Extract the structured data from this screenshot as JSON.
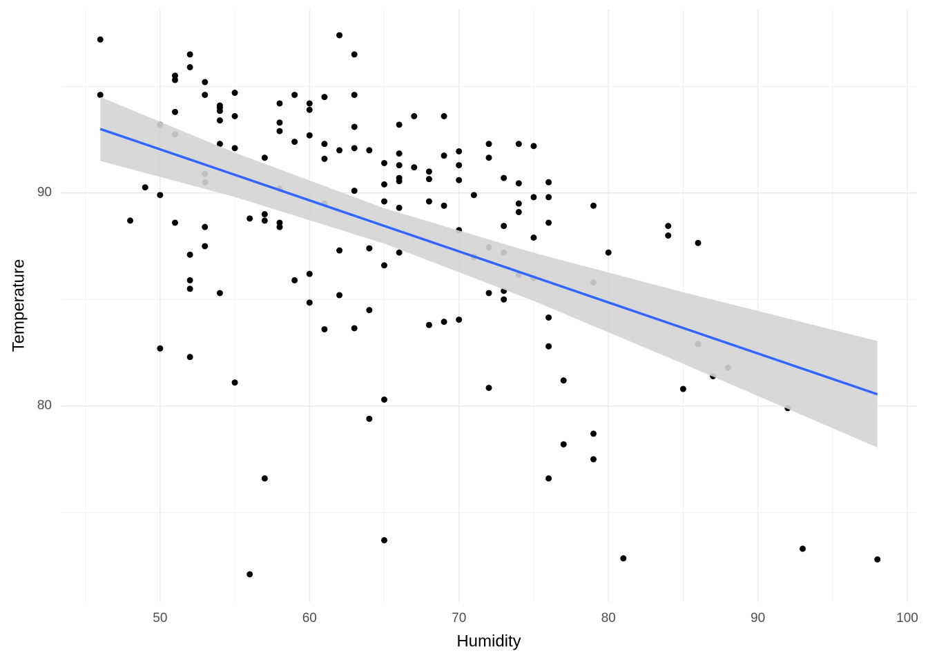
{
  "chart_data": {
    "type": "scatter",
    "x_label": "Humidity",
    "y_label": "Temperature",
    "xlim": [
      43.4,
      100.6
    ],
    "ylim": [
      70.8,
      98.6
    ],
    "xticks": [
      50,
      60,
      70,
      80,
      90,
      100
    ],
    "yticks": [
      80,
      90
    ],
    "x_minor_ticks": [
      45,
      55,
      65,
      75,
      85,
      95
    ],
    "y_minor_ticks": [
      75,
      85,
      95
    ],
    "grid": true,
    "point_color": "#000000",
    "x": [
      46,
      46,
      50,
      51,
      49,
      50,
      48,
      50,
      51,
      51,
      51,
      51,
      52,
      52,
      52,
      52,
      52,
      52,
      53,
      53,
      53,
      53,
      53,
      53,
      54,
      54,
      54,
      54,
      54,
      54,
      55,
      55,
      55,
      55,
      56,
      56,
      57,
      57,
      57,
      57,
      58,
      58,
      58,
      58,
      58,
      58,
      59,
      59,
      59,
      60,
      60,
      60,
      60,
      60,
      61,
      61,
      61,
      61,
      61,
      62,
      62,
      62,
      62,
      63,
      63,
      63,
      63,
      63,
      63,
      64,
      64,
      64,
      64,
      65,
      65,
      65,
      65,
      65,
      65,
      66,
      66,
      66,
      66,
      66,
      66,
      66,
      67,
      67,
      68,
      68,
      68,
      68,
      69,
      69,
      69,
      69,
      70,
      70,
      70,
      70,
      70,
      71,
      71,
      72,
      72,
      72,
      72,
      72,
      73,
      73,
      73,
      73,
      73,
      74,
      74,
      74,
      74,
      74,
      75,
      75,
      75,
      75,
      76,
      76,
      76,
      76,
      76,
      76,
      77,
      77,
      79,
      79,
      79,
      79,
      80,
      81,
      84,
      84,
      85,
      86,
      86,
      87,
      88,
      92,
      93,
      98
    ],
    "y": [
      97.2,
      94.6,
      93.2,
      92.75,
      90.26,
      89.9,
      88.7,
      82.7,
      95.5,
      95.3,
      93.8,
      88.6,
      96.5,
      95.9,
      87.1,
      85.9,
      85.5,
      82.3,
      95.2,
      94.6,
      90.9,
      90.5,
      88.4,
      87.5,
      94.1,
      94.0,
      93.85,
      93.4,
      92.3,
      85.3,
      94.7,
      93.6,
      92.1,
      81.1,
      88.8,
      72.1,
      91.65,
      89.0,
      88.7,
      76.6,
      94.2,
      93.3,
      92.9,
      90.2,
      88.6,
      88.4,
      94.6,
      92.4,
      85.9,
      94.2,
      93.9,
      92.7,
      86.2,
      84.85,
      94.5,
      92.3,
      91.6,
      89.5,
      83.6,
      97.4,
      92.0,
      87.3,
      85.2,
      96.5,
      94.6,
      93.1,
      92.1,
      90.1,
      83.65,
      92.0,
      87.4,
      84.5,
      79.4,
      91.4,
      90.4,
      89.6,
      86.6,
      80.3,
      73.7,
      93.2,
      91.85,
      91.3,
      90.7,
      90.55,
      89.3,
      87.2,
      93.6,
      91.2,
      91.0,
      90.65,
      89.6,
      83.8,
      93.6,
      91.75,
      89.4,
      83.95,
      91.95,
      91.3,
      90.6,
      88.25,
      84.05,
      89.9,
      87.0,
      92.3,
      91.65,
      87.45,
      85.3,
      80.85,
      90.7,
      88.45,
      87.2,
      85.4,
      85.0,
      92.3,
      90.45,
      89.5,
      89.1,
      86.15,
      92.2,
      89.8,
      87.9,
      86.0,
      90.5,
      89.8,
      88.6,
      84.15,
      82.8,
      76.6,
      81.2,
      78.2,
      89.4,
      85.8,
      78.7,
      77.5,
      87.2,
      72.85,
      88.45,
      88.0,
      80.8,
      87.65,
      82.9,
      81.4,
      81.8,
      79.9,
      73.3,
      72.8
    ],
    "fit": {
      "color": "#3366ff",
      "band_color": "#d4d4d4",
      "x": [
        46,
        55,
        65,
        75,
        85,
        98
      ],
      "y": [
        93.0,
        90.85,
        88.45,
        86.06,
        83.66,
        80.55
      ],
      "lower": [
        91.5,
        89.81,
        87.62,
        84.93,
        81.98,
        78.05
      ],
      "upper": [
        94.5,
        91.89,
        89.28,
        87.19,
        85.34,
        83.05
      ]
    }
  }
}
